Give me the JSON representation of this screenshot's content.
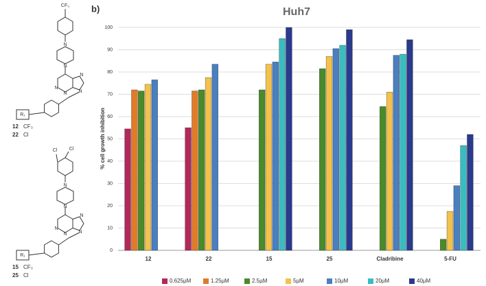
{
  "panel_label": "b)",
  "structures": [
    {
      "substituents": [
        "CF₃"
      ],
      "atoms": [
        "N",
        "N",
        "N",
        "N",
        "N",
        "N"
      ],
      "r": "R₁",
      "compounds": [
        {
          "id": "12",
          "r": "CF₃"
        },
        {
          "id": "22",
          "r": "Cl"
        }
      ]
    },
    {
      "substituents": [
        "Cl",
        "Cl"
      ],
      "atoms": [
        "N",
        "N",
        "N",
        "N",
        "N",
        "N"
      ],
      "r": "R₁",
      "compounds": [
        {
          "id": "15",
          "r": "CF₃"
        },
        {
          "id": "25",
          "r": "Cl"
        }
      ]
    }
  ],
  "chart_data": {
    "type": "bar",
    "title": "Huh7",
    "y_label": "% cell growth inhibition",
    "categories": [
      "12",
      "22",
      "15",
      "25",
      "Cladribine",
      "5-FU"
    ],
    "series": [
      {
        "name": "0.625µM",
        "color": "#b3285a",
        "values": [
          54.5,
          55,
          null,
          null,
          null,
          null
        ]
      },
      {
        "name": "1.25µM",
        "color": "#e07b2a",
        "values": [
          72,
          71.5,
          null,
          null,
          null,
          null
        ]
      },
      {
        "name": "2.5µM",
        "color": "#4a8a2a",
        "values": [
          71.5,
          72,
          72,
          81.5,
          64.5,
          5
        ]
      },
      {
        "name": "5µM",
        "color": "#f2c14e",
        "values": [
          74.5,
          77.5,
          83.5,
          87,
          71,
          17.5
        ]
      },
      {
        "name": "10µM",
        "color": "#4a7fc0",
        "values": [
          76.5,
          83.5,
          84.5,
          90.5,
          87.5,
          29
        ]
      },
      {
        "name": "20µM",
        "color": "#3bbcc0",
        "values": [
          null,
          null,
          95,
          92,
          88,
          47
        ]
      },
      {
        "name": "40µM",
        "color": "#2a3a8c",
        "values": [
          null,
          null,
          100,
          99,
          94.5,
          52
        ]
      }
    ],
    "ylim": [
      0,
      100
    ],
    "yticks": [
      0,
      10,
      20,
      30,
      40,
      50,
      60,
      70,
      80,
      90,
      100
    ],
    "grid": true,
    "legend": "bottom"
  }
}
